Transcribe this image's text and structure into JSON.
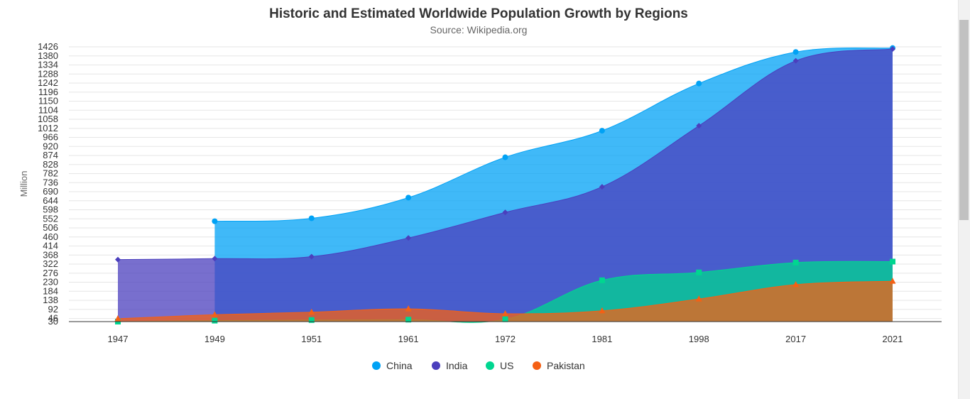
{
  "chart_data": {
    "type": "area",
    "title": "Historic and Estimated Worldwide Population Growth by Regions",
    "subtitle": "Source: Wikipedia.org",
    "ylabel": "Million",
    "xlabel": "",
    "categories": [
      "1947",
      "1949",
      "1951",
      "1961",
      "1972",
      "1981",
      "1998",
      "2017",
      "2021"
    ],
    "ylim": [
      30,
      1426
    ],
    "yticks": [
      30,
      46,
      92,
      138,
      184,
      230,
      276,
      322,
      368,
      414,
      460,
      506,
      552,
      598,
      644,
      690,
      736,
      782,
      828,
      874,
      920,
      966,
      1012,
      1058,
      1104,
      1150,
      1196,
      1242,
      1288,
      1334,
      1380,
      1426
    ],
    "grid": true,
    "legend_position": "bottom-center",
    "series": [
      {
        "name": "China",
        "color": "#00a2f5",
        "marker": "circle",
        "values": [
          null,
          540,
          555,
          660,
          865,
          1000,
          1240,
          1400,
          1420
        ]
      },
      {
        "name": "India",
        "color": "#4b3fbd",
        "marker": "diamond",
        "values": [
          345,
          350,
          360,
          455,
          585,
          715,
          1025,
          1355,
          1415
        ]
      },
      {
        "name": "US",
        "color": "#00d690",
        "marker": "square",
        "values": [
          30,
          35,
          38,
          40,
          42,
          240,
          280,
          330,
          335
        ]
      },
      {
        "name": "Pakistan",
        "color": "#f56014",
        "marker": "triangle",
        "values": [
          45,
          65,
          78,
          95,
          70,
          85,
          145,
          218,
          235
        ]
      }
    ]
  }
}
